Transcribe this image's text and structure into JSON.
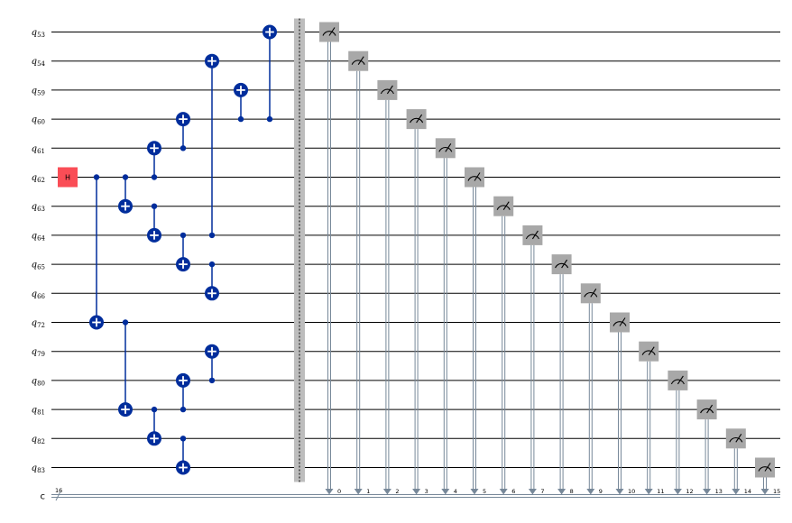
{
  "colors": {
    "wire": "#000000",
    "cnot": "#002D9C",
    "h_gate": "#FA4D56",
    "measure_box": "#A8A8A8",
    "measure_line": "#778899",
    "barrier": "#BDBDBD"
  },
  "circuit": {
    "qubits": [
      {
        "base": "q",
        "index": "53"
      },
      {
        "base": "q",
        "index": "54"
      },
      {
        "base": "q",
        "index": "59"
      },
      {
        "base": "q",
        "index": "60"
      },
      {
        "base": "q",
        "index": "61"
      },
      {
        "base": "q",
        "index": "62"
      },
      {
        "base": "q",
        "index": "63"
      },
      {
        "base": "q",
        "index": "64"
      },
      {
        "base": "q",
        "index": "65"
      },
      {
        "base": "q",
        "index": "66"
      },
      {
        "base": "q",
        "index": "72"
      },
      {
        "base": "q",
        "index": "79"
      },
      {
        "base": "q",
        "index": "80"
      },
      {
        "base": "q",
        "index": "81"
      },
      {
        "base": "q",
        "index": "82"
      },
      {
        "base": "q",
        "index": "83"
      }
    ],
    "classical_register": {
      "label": "c",
      "width_label": "16"
    },
    "gates": [
      {
        "type": "h",
        "label": "H",
        "qubit": "62"
      },
      {
        "type": "cx",
        "control": "62",
        "target": "72"
      },
      {
        "type": "cx",
        "control": "62",
        "target": "63"
      },
      {
        "type": "cx",
        "control": "72",
        "target": "81"
      },
      {
        "type": "cx",
        "control": "62",
        "target": "61"
      },
      {
        "type": "cx",
        "control": "63",
        "target": "64"
      },
      {
        "type": "cx",
        "control": "81",
        "target": "82"
      },
      {
        "type": "cx",
        "control": "61",
        "target": "60"
      },
      {
        "type": "cx",
        "control": "64",
        "target": "65"
      },
      {
        "type": "cx",
        "control": "81",
        "target": "80"
      },
      {
        "type": "cx",
        "control": "82",
        "target": "83"
      },
      {
        "type": "cx",
        "control": "64",
        "target": "54"
      },
      {
        "type": "cx",
        "control": "65",
        "target": "66"
      },
      {
        "type": "cx",
        "control": "80",
        "target": "79"
      },
      {
        "type": "cx",
        "control": "60",
        "target": "59"
      },
      {
        "type": "cx",
        "control": "60",
        "target": "53"
      }
    ],
    "barrier": true,
    "measurements": [
      {
        "qubit": "53",
        "bit": "0"
      },
      {
        "qubit": "54",
        "bit": "1"
      },
      {
        "qubit": "59",
        "bit": "2"
      },
      {
        "qubit": "60",
        "bit": "3"
      },
      {
        "qubit": "61",
        "bit": "4"
      },
      {
        "qubit": "62",
        "bit": "5"
      },
      {
        "qubit": "63",
        "bit": "6"
      },
      {
        "qubit": "64",
        "bit": "7"
      },
      {
        "qubit": "65",
        "bit": "8"
      },
      {
        "qubit": "66",
        "bit": "9"
      },
      {
        "qubit": "72",
        "bit": "10"
      },
      {
        "qubit": "79",
        "bit": "11"
      },
      {
        "qubit": "80",
        "bit": "12"
      },
      {
        "qubit": "81",
        "bit": "13"
      },
      {
        "qubit": "82",
        "bit": "14"
      },
      {
        "qubit": "83",
        "bit": "15"
      }
    ]
  }
}
